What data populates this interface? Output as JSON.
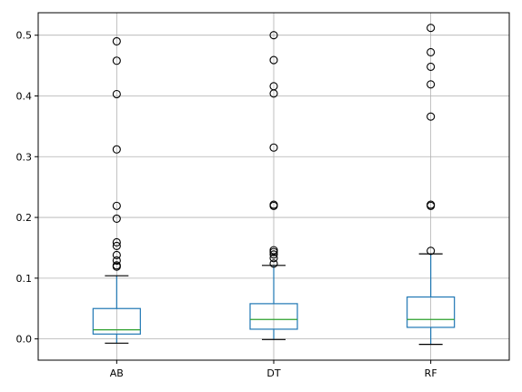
{
  "chart_data": {
    "type": "boxplot",
    "title": "",
    "xlabel": "",
    "ylabel": "",
    "categories": [
      "AB",
      "DT",
      "RF"
    ],
    "ylim": [
      -0.035,
      0.537
    ],
    "yticks": [
      0.0,
      0.1,
      0.2,
      0.3,
      0.4,
      0.5
    ],
    "ytick_labels": [
      "0.0",
      "0.1",
      "0.2",
      "0.3",
      "0.4",
      "0.5"
    ],
    "grid": true,
    "boxes": [
      {
        "name": "AB",
        "whisker_low": -0.007,
        "q1": 0.008,
        "median": 0.015,
        "q3": 0.05,
        "whisker_high": 0.104,
        "outliers": [
          0.119,
          0.121,
          0.129,
          0.138,
          0.153,
          0.159,
          0.198,
          0.219,
          0.312,
          0.403,
          0.458,
          0.49
        ]
      },
      {
        "name": "DT",
        "whisker_low": -0.001,
        "q1": 0.016,
        "median": 0.032,
        "q3": 0.058,
        "whisker_high": 0.121,
        "outliers": [
          0.124,
          0.133,
          0.139,
          0.143,
          0.146,
          0.219,
          0.221,
          0.315,
          0.404,
          0.416,
          0.459,
          0.5
        ]
      },
      {
        "name": "RF",
        "whisker_low": -0.009,
        "q1": 0.019,
        "median": 0.032,
        "q3": 0.069,
        "whisker_high": 0.14,
        "outliers": [
          0.145,
          0.219,
          0.221,
          0.366,
          0.419,
          0.448,
          0.472,
          0.512
        ]
      }
    ],
    "colors": {
      "box": "#1f77b4",
      "median": "#2ca02c",
      "whisker_cap": "#000000",
      "outlier": "#000000",
      "grid": "#b0b0b0",
      "axes": "#000000"
    }
  }
}
